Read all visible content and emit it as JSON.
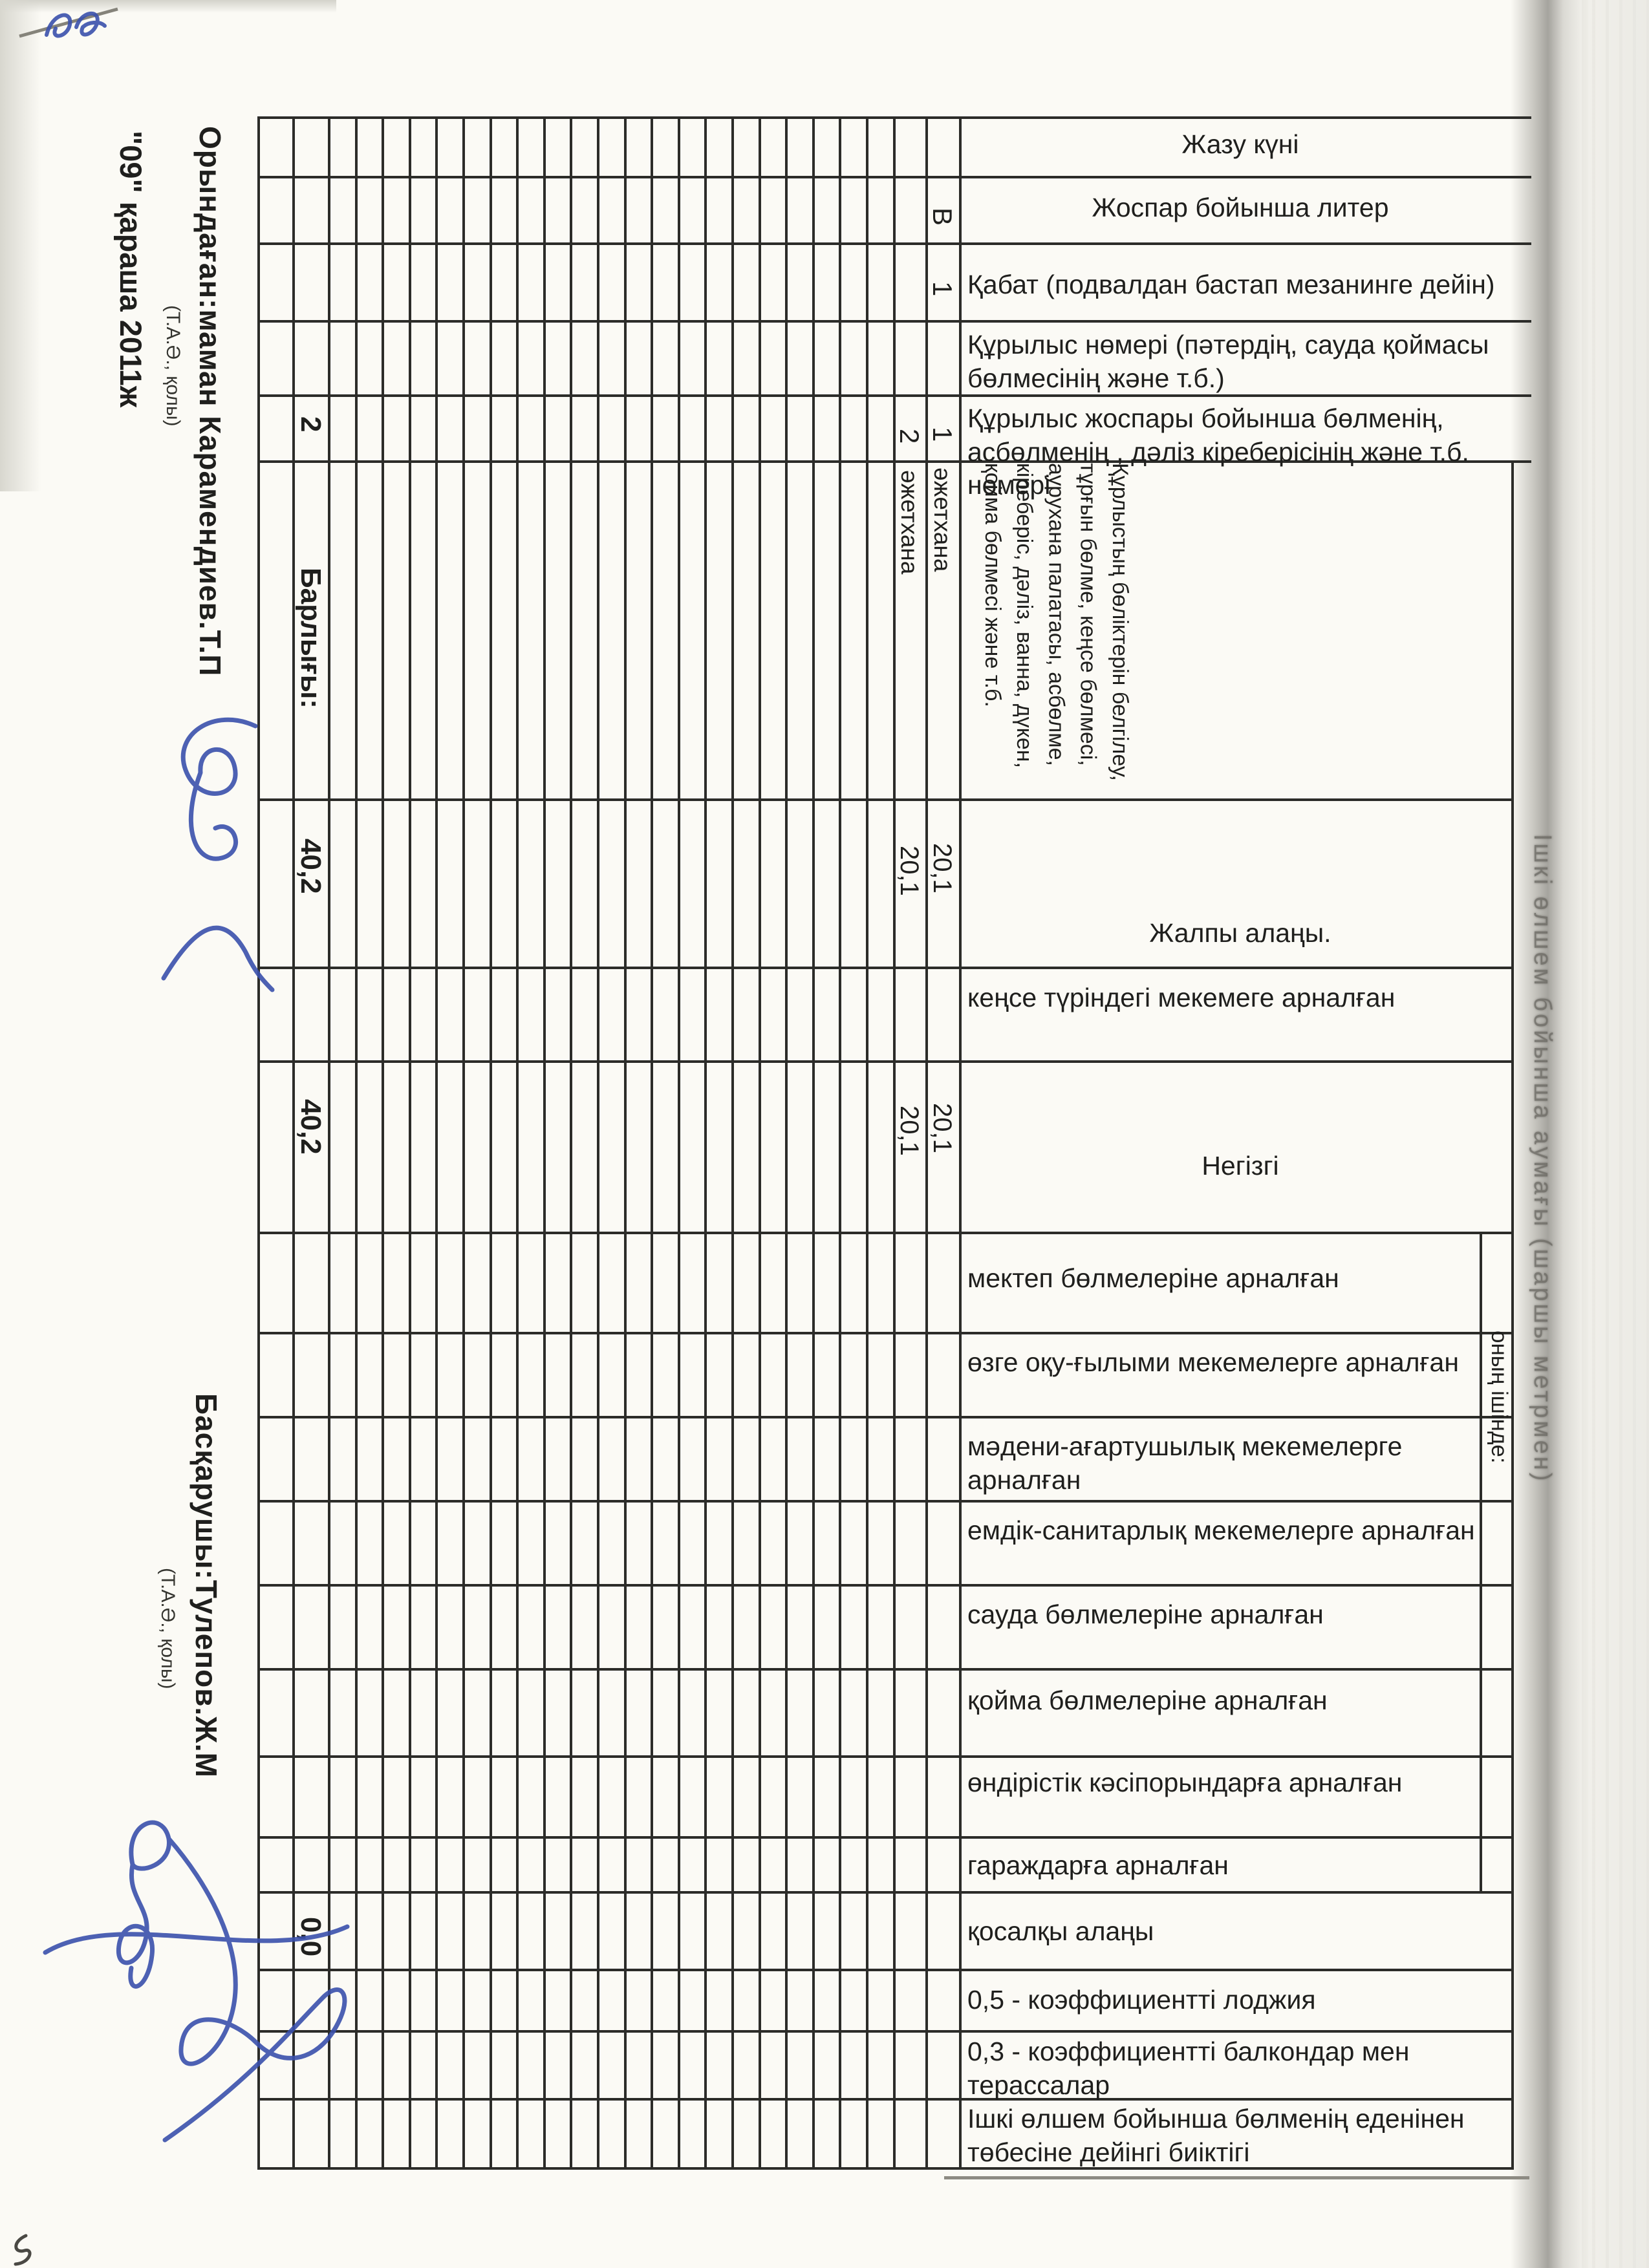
{
  "left_margin": {
    "executor_label": "Орындаған:маман Карамендиев.Т.П",
    "executor_sub": "(Т.А.Ә., қолы)",
    "date_line": "\"09\" қараша 2011ж",
    "manager_label": "Басқарушы:Тулепов.Ж.М",
    "manager_sub": "(Т.А.Ә., қолы)"
  },
  "fold": {
    "group_header": "Ішкі өлшем бойынша аумағы (шаршы метрмен)"
  },
  "table": {
    "headers": {
      "h1": "Жазу күні",
      "h2": "Жоспар бойынша литер",
      "h3": "Қабат (подвалдан бастап мезанинге дейін)",
      "h4": "Құрылыс нөмері (пәтердің, сауда қоймасы бөлмесінің және т.б.)",
      "h5": "Құрылыс жоспары бойынша бөлменің, асбөлменің , дәліз кіреберісінің және т.б. нөмері",
      "h6": "Құрлыстың бөліктерін белгілеу, тұрғын бөлме, кеңсе бөлмесі, аурухана палатасы, асбөлме, кіреберіс, дәліз, ванна, дүкен, қойма бөлмесі және т.б.",
      "h7": "Жалпы алаңы.",
      "h8": "кеңсе түріндегі мекемеге арналған",
      "h9": "Негізгі",
      "h10": "мектеп бөлмелеріне арналған",
      "h11": "өзге оқу-ғылыми мекемелерге арналған",
      "h12": "мәдени-ағартушылық мекемелерге арналған",
      "h13": "емдік-санитарлық мекемелерге арналған",
      "h14": "сауда бөлмелеріне арналған",
      "h15": "қойма бөлмелеріне арналған",
      "h16": "өндірістік кәсіпорындарға арналған",
      "h17": "гараждарға арналған",
      "h18": "қосалқы алаңы",
      "h19": "0,5 - коэффициентті лоджия",
      "h20": "0,3 - коэффициентті балкондар мен терассалар",
      "h21": "Ішкі өлшем бойынша бөлменің еденінен төбесіне дейінгі биіктігі",
      "group_inner": "оның ішінде:"
    },
    "rows": [
      {
        "liter": "В",
        "floor": "1",
        "room_no": "1",
        "name": "әжетхана",
        "total_area": "20,1",
        "main_area": "20,1"
      },
      {
        "room_no": "2",
        "name": "әжетхана",
        "total_area": "20,1",
        "main_area": "20,1"
      }
    ],
    "totals": {
      "room_count": "2",
      "label": "Барлығы:",
      "total_area": "40,2",
      "main_area": "40,2",
      "aux_area": "0,0"
    }
  },
  "colors": {
    "line": "#2c2c29",
    "ink_blue": "#3a50ac",
    "paper": "#fbfaf5",
    "fold_gray": "#6a6862"
  }
}
